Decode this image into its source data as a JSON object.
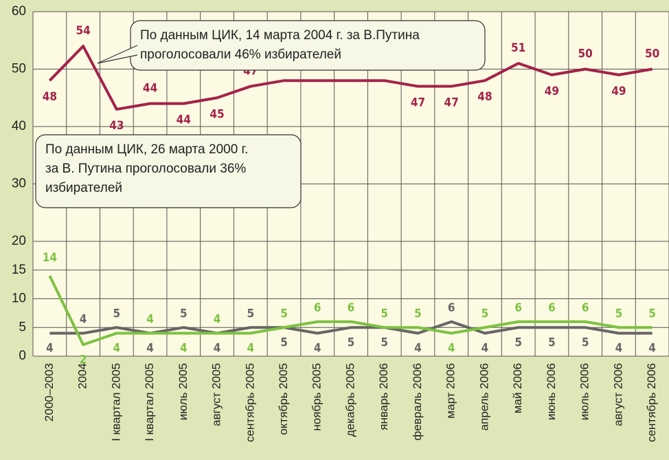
{
  "chart_data": {
    "type": "line",
    "categories": [
      "2000–2003",
      "2004",
      "I квартал 2005",
      "I квартал 2005",
      "июль 2005",
      "август 2005",
      "сентябрь 2005",
      "октябрь 2005",
      "ноябрь 2005",
      "декабрь 2005",
      "январь 2006",
      "февраль 2006",
      "март 2006",
      "апрель 2006",
      "май 2006",
      "июнь 2006",
      "июль 2006",
      "август 2006",
      "сентябрь 2006"
    ],
    "series": [
      {
        "color": "#a3224a",
        "values": [
          48,
          54,
          43,
          44,
          44,
          45,
          47,
          48,
          48,
          48,
          48,
          47,
          47,
          48,
          51,
          49,
          50,
          49,
          50
        ]
      },
      {
        "color": "#666666",
        "values": [
          4,
          4,
          5,
          4,
          5,
          4,
          5,
          5,
          4,
          5,
          5,
          4,
          6,
          4,
          5,
          5,
          5,
          4,
          4
        ]
      },
      {
        "color": "#7dc242",
        "values": [
          14,
          2,
          4,
          4,
          4,
          4,
          4,
          5,
          6,
          6,
          5,
          5,
          4,
          5,
          6,
          6,
          6,
          5,
          5
        ]
      }
    ],
    "ylim": [
      0,
      60
    ],
    "yticks": [
      0,
      5,
      10,
      15,
      20,
      30,
      40,
      50,
      60
    ],
    "grid": true,
    "annotations": [
      [
        "По данным ЦИК, 14 марта 2004 г. за В.Путина",
        "проголосовали 46% избирателей"
      ],
      [
        "По данным ЦИК, 26 марта 2000 г.",
        "за В. Путина проголосовали 36%",
        "избирателей"
      ]
    ]
  }
}
